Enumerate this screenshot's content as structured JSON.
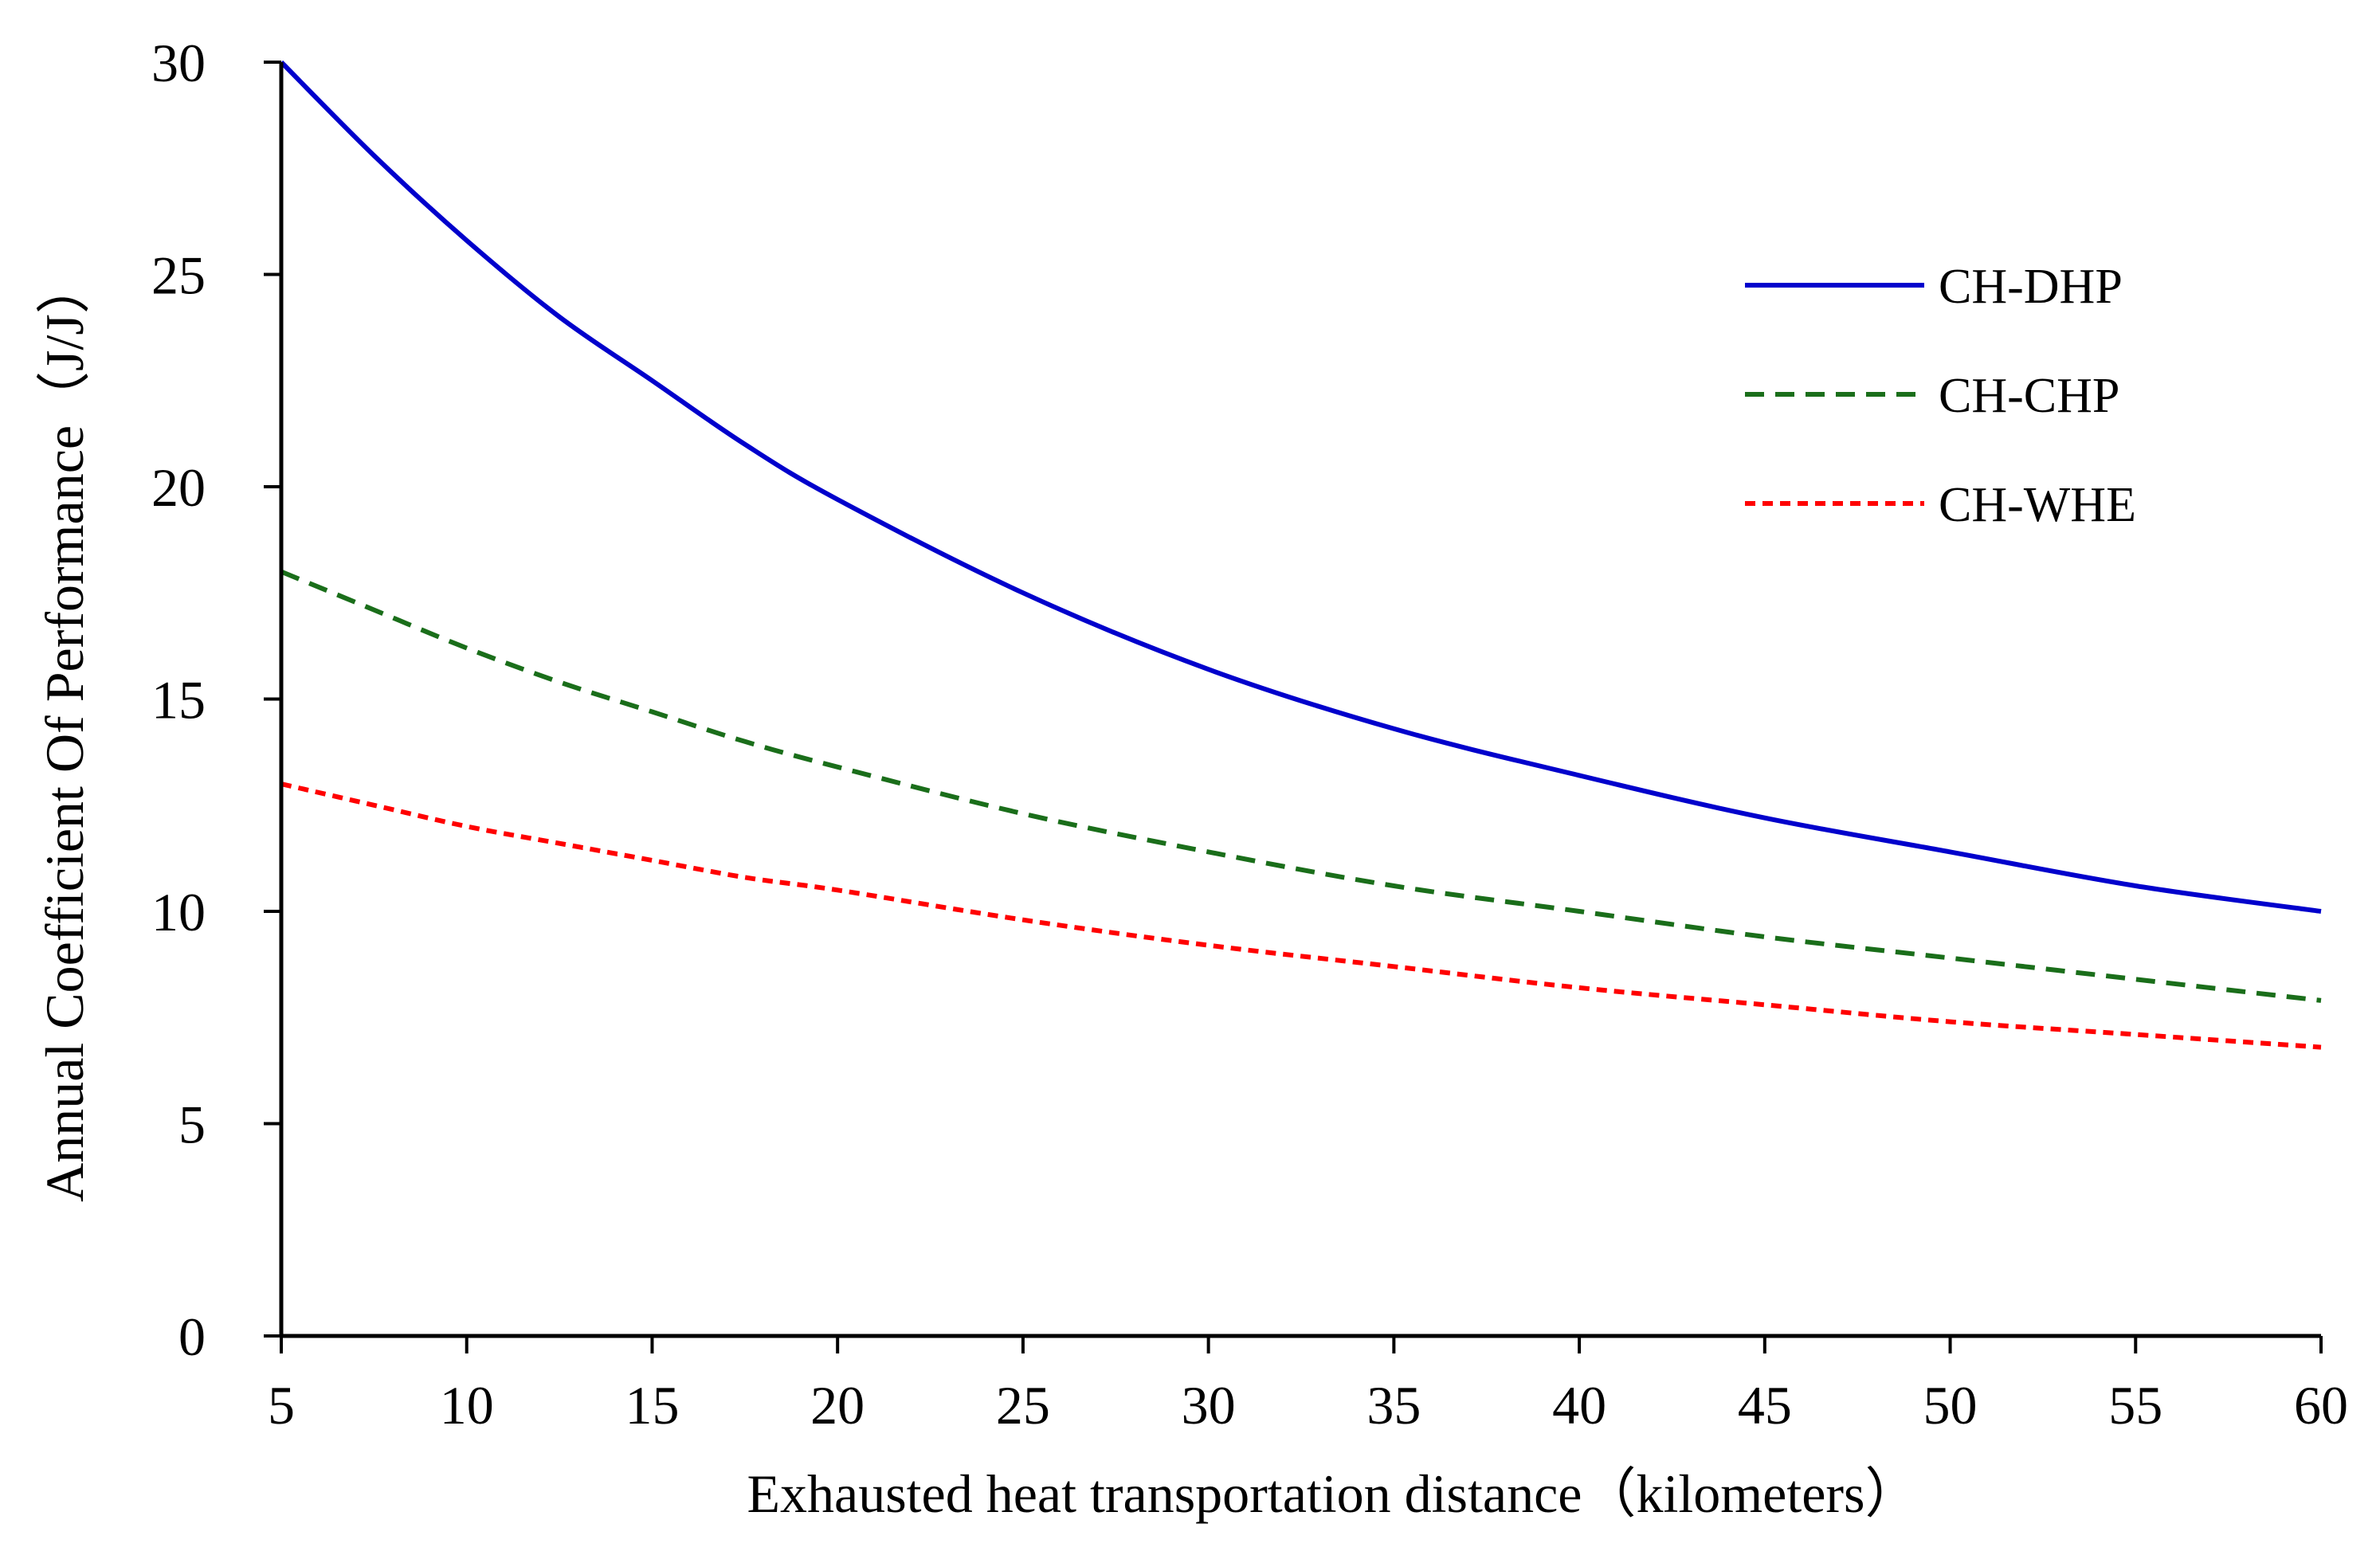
{
  "chart_data": {
    "type": "line",
    "title": "",
    "xlabel": "Exhausted heat transportation distance（kilometers）",
    "ylabel": "Annual Coefficient Of Performance（J/J）",
    "xlim": [
      5,
      60
    ],
    "ylim": [
      0,
      30
    ],
    "xticks": [
      "5",
      "10",
      "15",
      "20",
      "25",
      "30",
      "35",
      "40",
      "45",
      "50",
      "55",
      "60"
    ],
    "yticks": [
      "0",
      "5",
      "10",
      "15",
      "20",
      "25",
      "30"
    ],
    "grid": false,
    "legend_position": "top-right",
    "x": [
      5,
      7.5,
      10,
      12.5,
      15,
      17.5,
      20,
      25,
      30,
      35,
      40,
      45,
      50,
      55,
      60
    ],
    "series": [
      {
        "name": "CH-DHP",
        "color": "#0000cc",
        "style": "solid",
        "values": [
          30.0,
          27.8,
          25.8,
          24.0,
          22.5,
          21.0,
          19.7,
          17.5,
          15.7,
          14.3,
          13.2,
          12.2,
          11.4,
          10.6,
          10.0
        ]
      },
      {
        "name": "CH-CHP",
        "color": "#1a6e1a",
        "style": "dashed",
        "values": [
          18.0,
          17.1,
          16.2,
          15.4,
          14.7,
          14.0,
          13.4,
          12.3,
          11.4,
          10.6,
          10.0,
          9.4,
          8.9,
          8.4,
          7.9
        ]
      },
      {
        "name": "CH-WHE",
        "color": "#ff0000",
        "style": "dotted",
        "values": [
          13.0,
          12.5,
          12.0,
          11.6,
          11.2,
          10.8,
          10.5,
          9.8,
          9.2,
          8.7,
          8.2,
          7.8,
          7.4,
          7.1,
          6.8
        ]
      }
    ]
  }
}
